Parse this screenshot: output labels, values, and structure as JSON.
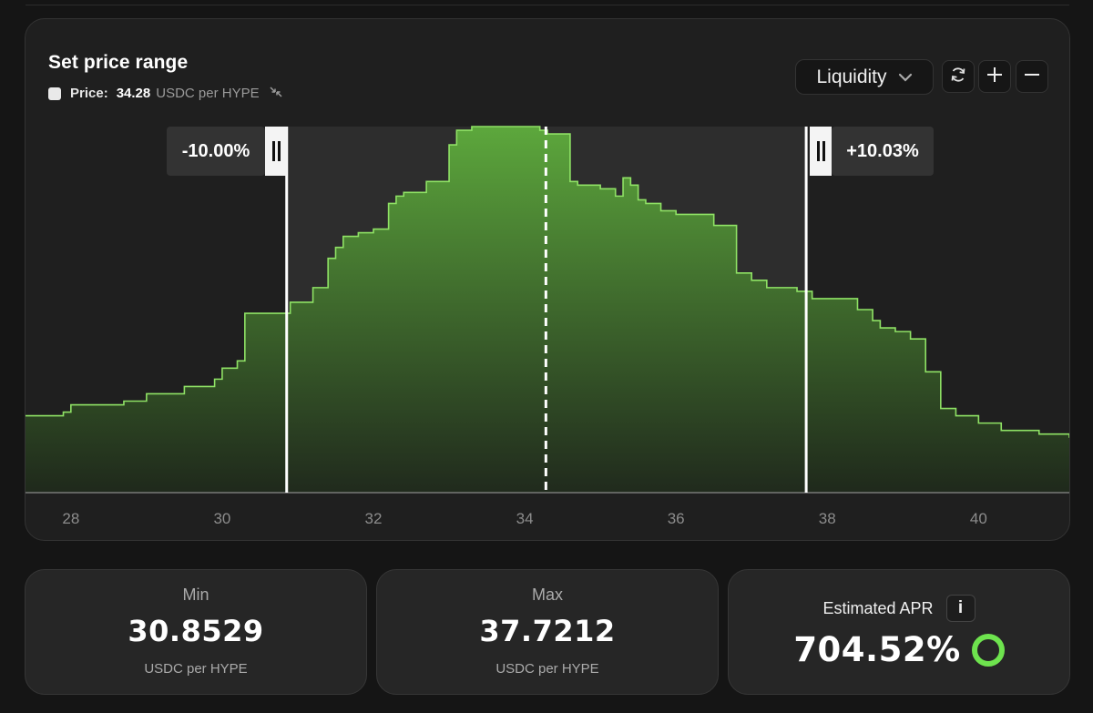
{
  "panel": {
    "title": "Set price range",
    "price_label": "Price:",
    "price_value": "34.28",
    "price_unit": "USDC per HYPE",
    "dropdown_label": "Liquidity",
    "lower_pct": "-10.00%",
    "upper_pct": "+10.03%"
  },
  "chart_data": {
    "type": "area",
    "xlabel": "",
    "ylabel": "",
    "xlim": [
      27.4,
      41.2
    ],
    "x_ticks": [
      "28",
      "30",
      "32",
      "34",
      "36",
      "38",
      "40"
    ],
    "current_price": 34.28,
    "range_min": 30.8529,
    "range_max": 37.7212,
    "colors": {
      "line": "#8fe265",
      "fill_top": "#5fae3d",
      "fill_bottom": "#1f2a1b",
      "range_bg": "#2d2d2d"
    },
    "series": [
      {
        "x": [
          27.4,
          27.9,
          28.0,
          28.7,
          29.0,
          29.5,
          29.9,
          30.0,
          30.2,
          30.3,
          30.9,
          31.2,
          31.4,
          31.5,
          31.6,
          31.8,
          32.0,
          32.2,
          32.3,
          32.4,
          32.7,
          33.0,
          33.1,
          33.3,
          33.5,
          34.2,
          34.3,
          34.6,
          34.7,
          35.0,
          35.2,
          35.3,
          35.4,
          35.5,
          35.6,
          35.8,
          36.0,
          36.5,
          36.8,
          37.0,
          37.2,
          37.6,
          37.8,
          38.4,
          38.6,
          38.7,
          38.9,
          39.1,
          39.3,
          39.5,
          39.7,
          40.0,
          40.3,
          40.8,
          41.2
        ],
        "values": [
          0.21,
          0.22,
          0.24,
          0.25,
          0.27,
          0.29,
          0.31,
          0.34,
          0.36,
          0.49,
          0.52,
          0.56,
          0.64,
          0.67,
          0.7,
          0.71,
          0.72,
          0.79,
          0.81,
          0.82,
          0.85,
          0.95,
          0.99,
          1.0,
          1.0,
          0.99,
          0.98,
          0.85,
          0.84,
          0.83,
          0.81,
          0.86,
          0.84,
          0.8,
          0.79,
          0.77,
          0.76,
          0.73,
          0.6,
          0.58,
          0.56,
          0.55,
          0.53,
          0.5,
          0.47,
          0.45,
          0.44,
          0.42,
          0.33,
          0.23,
          0.21,
          0.19,
          0.17,
          0.16,
          0.15
        ]
      }
    ]
  },
  "cards": {
    "min_label": "Min",
    "min_value": "30.8529",
    "min_unit": "USDC per HYPE",
    "max_label": "Max",
    "max_value": "37.7212",
    "max_unit": "USDC per HYPE",
    "apr_label": "Estimated APR",
    "apr_info": "i",
    "apr_value": "704.52%"
  },
  "icons": {
    "chevron": "chevron-down-icon",
    "refresh": "refresh-icon",
    "zoom_in": "plus-icon",
    "zoom_out": "minus-icon",
    "swap": "swap-arrows-icon",
    "apr_status": "status-ring-icon"
  }
}
